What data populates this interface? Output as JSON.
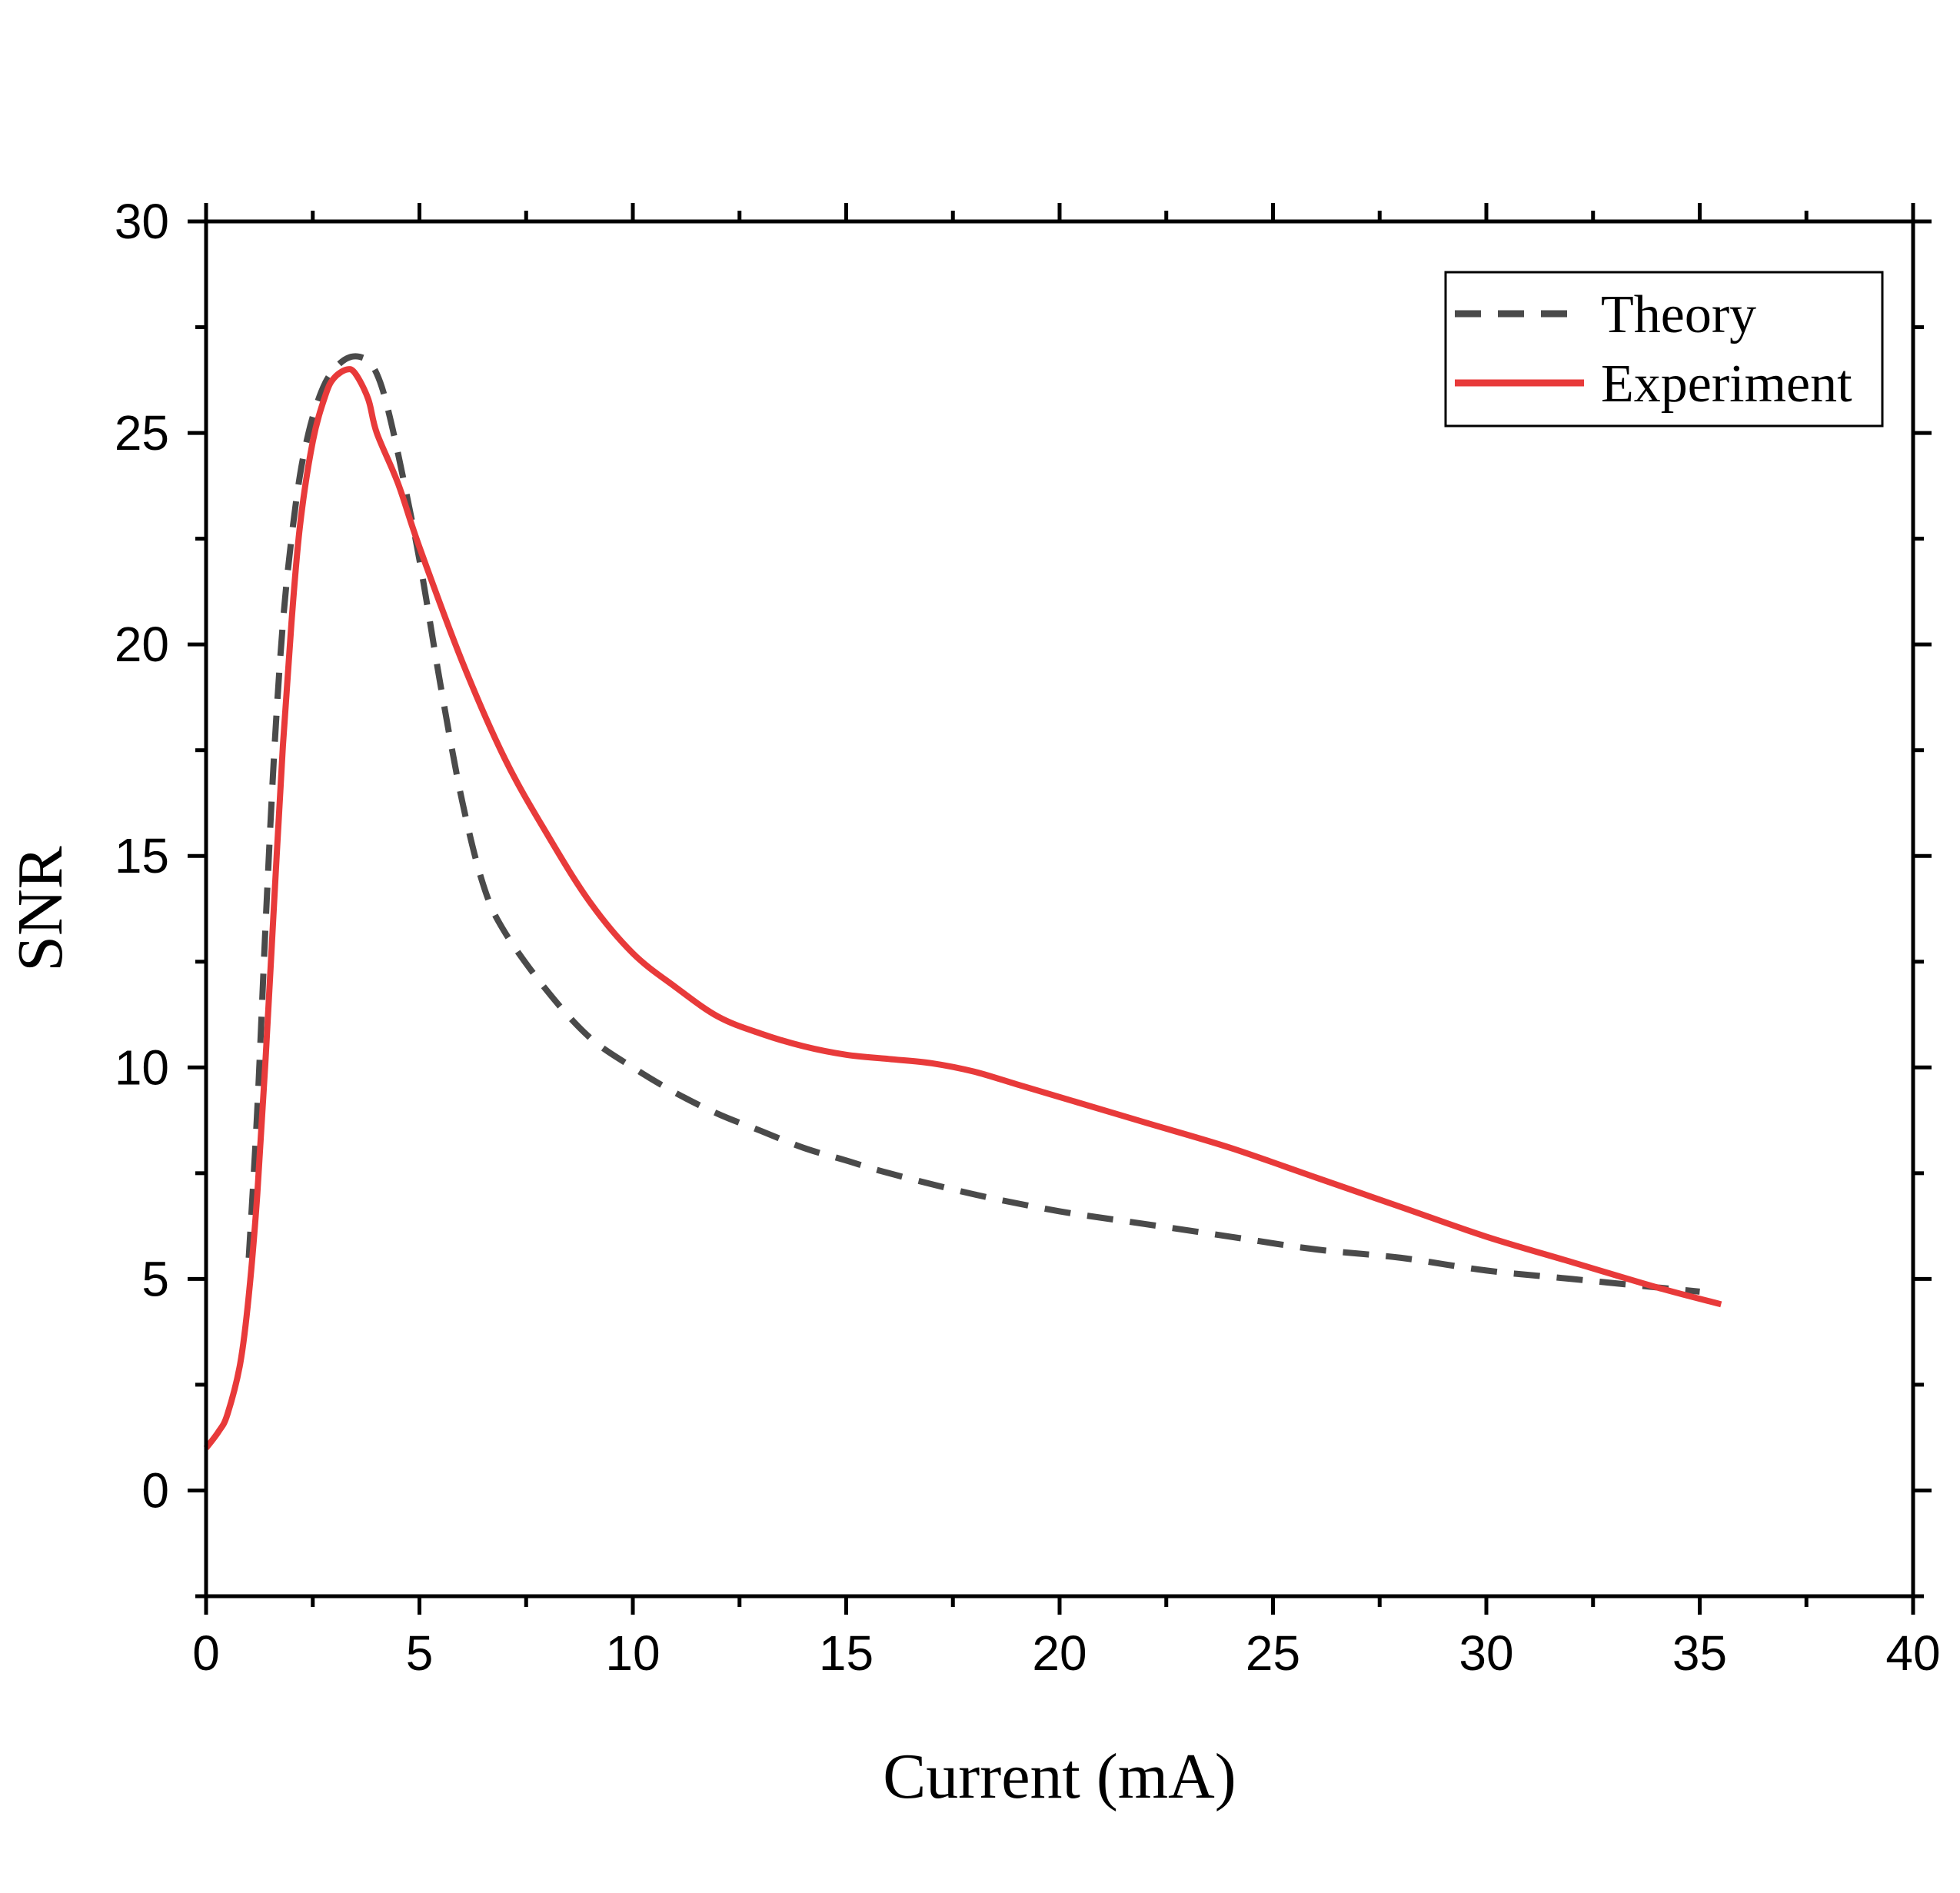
{
  "chart_data": {
    "type": "line",
    "title": "",
    "xlabel": "Current (mA)",
    "ylabel": "SNR",
    "xlim": [
      0,
      40
    ],
    "ylim": [
      -2.5,
      30
    ],
    "xticks": [
      0,
      5,
      10,
      15,
      20,
      25,
      30,
      35,
      40
    ],
    "xtick_labels": [
      "0",
      "5",
      "10",
      "15",
      "20",
      "25",
      "30",
      "35",
      "40"
    ],
    "yticks": [
      0,
      5,
      10,
      15,
      20,
      25,
      30
    ],
    "ytick_labels": [
      "0",
      "5",
      "10",
      "15",
      "20",
      "25",
      "30"
    ],
    "grid": false,
    "legend_position": "top-right",
    "series": [
      {
        "name": "Theory",
        "style": "dashed",
        "color": "#4a4a4a",
        "x": [
          1.0,
          1.2,
          1.4,
          1.6,
          1.8,
          2.0,
          2.2,
          2.4,
          2.6,
          2.8,
          3.0,
          3.2,
          3.4,
          3.6,
          3.8,
          4.0,
          4.2,
          4.5,
          5.0,
          5.5,
          6.0,
          6.5,
          7.0,
          8.0,
          9.0,
          10.0,
          11.0,
          12.0,
          13.0,
          14.0,
          15.0,
          16.0,
          18.0,
          20.0,
          22.0,
          24.0,
          26.0,
          28.0,
          30.0,
          32.0,
          34.0,
          35.0
        ],
        "y": [
          5.5,
          9.0,
          13.5,
          17.5,
          20.5,
          22.5,
          24.0,
          25.0,
          25.7,
          26.2,
          26.5,
          26.7,
          26.8,
          26.8,
          26.7,
          26.4,
          25.8,
          24.5,
          22.0,
          19.0,
          16.3,
          14.3,
          13.2,
          11.8,
          10.7,
          10.0,
          9.4,
          8.9,
          8.5,
          8.1,
          7.8,
          7.5,
          7.0,
          6.6,
          6.3,
          6.0,
          5.7,
          5.5,
          5.2,
          5.0,
          4.8,
          4.7
        ]
      },
      {
        "name": "Experiment",
        "style": "solid",
        "color": "#e83a3a",
        "x": [
          0.0,
          0.3,
          0.5,
          0.8,
          1.0,
          1.2,
          1.4,
          1.6,
          1.8,
          2.0,
          2.2,
          2.5,
          2.8,
          3.0,
          3.3,
          3.5,
          3.8,
          4.0,
          4.5,
          5.0,
          6.0,
          7.0,
          8.0,
          9.0,
          10.0,
          11.0,
          12.0,
          13.0,
          14.0,
          15.0,
          16.0,
          17.0,
          18.0,
          19.0,
          20.0,
          22.0,
          24.0,
          26.0,
          28.0,
          30.0,
          32.0,
          34.0,
          35.5
        ],
        "y": [
          1.0,
          1.4,
          1.8,
          3.0,
          4.6,
          7.0,
          10.3,
          14.0,
          17.6,
          20.5,
          22.8,
          24.8,
          25.9,
          26.3,
          26.5,
          26.4,
          25.8,
          25.0,
          23.8,
          22.3,
          19.6,
          17.3,
          15.5,
          13.9,
          12.7,
          11.9,
          11.2,
          10.8,
          10.5,
          10.3,
          10.2,
          10.1,
          9.9,
          9.6,
          9.3,
          8.7,
          8.1,
          7.4,
          6.7,
          6.0,
          5.4,
          4.8,
          4.4
        ]
      }
    ]
  }
}
